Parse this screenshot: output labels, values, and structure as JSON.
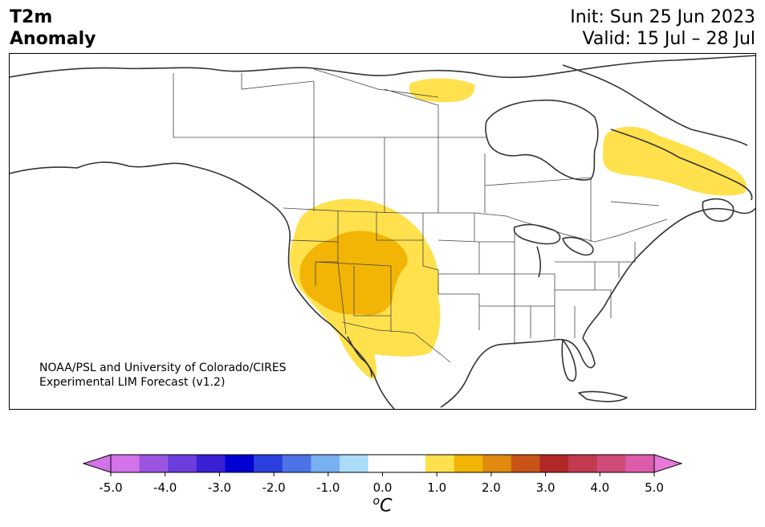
{
  "title": {
    "line1": "T2m",
    "line2": "Anomaly"
  },
  "dates": {
    "init": "Init: Sun 25 Jun 2023",
    "valid": "Valid: 15 Jul – 28 Jul"
  },
  "credit": {
    "line1": "NOAA/PSL and University of Colorado/CIRES",
    "line2": "Experimental LIM Forecast (v1.2)"
  },
  "colorbar": {
    "unit_sup": "o",
    "unit": "C",
    "ticks": [
      "-5.0",
      "-4.0",
      "-3.0",
      "-2.0",
      "-1.0",
      "0.0",
      "1.0",
      "2.0",
      "3.0",
      "4.0",
      "5.0"
    ],
    "low_extend_color": "#d273ea",
    "high_extend_color": "#e879d9",
    "colors": [
      "#d273ea",
      "#9a55e0",
      "#6a3ddc",
      "#3a1fd4",
      "#0000d0",
      "#2a3fde",
      "#4d72e6",
      "#78b0f2",
      "#aadcf8",
      "#ffffff",
      "#ffffff",
      "#ffe14d",
      "#f2b505",
      "#e08a10",
      "#c85418",
      "#b22828",
      "#c23a50",
      "#d04c78",
      "#dc5caa"
    ]
  },
  "anomaly_colors": {
    "weak_warm": "#ffe14d",
    "moderate_warm": "#f2b505"
  }
}
